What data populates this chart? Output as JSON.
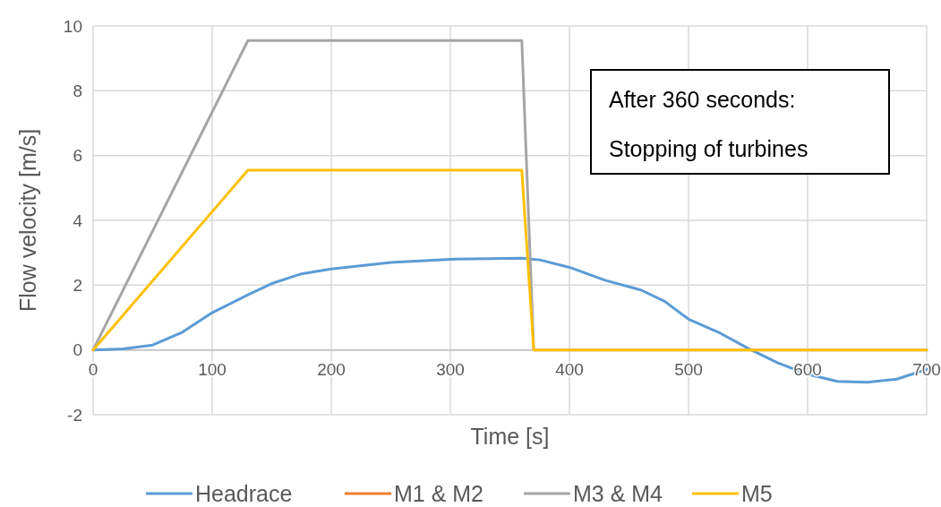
{
  "chart_data": {
    "type": "line",
    "xlabel": "Time [s]",
    "ylabel": "Flow velocity [m/s]",
    "annotations": [
      "After 360 seconds:\nStopping of turbines"
    ],
    "xlim": [
      0,
      700
    ],
    "xticks": [
      0,
      100,
      200,
      300,
      400,
      500,
      600,
      700
    ],
    "ylim": [
      -2,
      10
    ],
    "yticks": [
      -2,
      0,
      2,
      4,
      6,
      8,
      10
    ],
    "grid": true,
    "legend": "bottom",
    "line_style": "solid",
    "series": [
      {
        "name": "Headrace",
        "color": "#5b9bd5",
        "x": [
          0,
          25,
          50,
          75,
          100,
          130,
          150,
          175,
          200,
          250,
          300,
          360,
          375,
          400,
          430,
          460,
          480,
          500,
          525,
          550,
          575,
          600,
          625,
          650,
          675,
          700
        ],
        "values": [
          0,
          0.03,
          0.15,
          0.55,
          1.15,
          1.7,
          2.05,
          2.35,
          2.5,
          2.7,
          2.8,
          2.83,
          2.78,
          2.55,
          2.15,
          1.85,
          1.5,
          0.95,
          0.55,
          0.05,
          -0.4,
          -0.75,
          -0.97,
          -1.0,
          -0.9,
          -0.6
        ]
      },
      {
        "name": "M1 & M2",
        "color": "#ed7d31",
        "values": [
          null
        ]
      },
      {
        "name": "M3 & M4",
        "color": "#a5a5a5",
        "x": [
          0,
          130,
          360,
          370,
          700
        ],
        "values": [
          0,
          9.55,
          9.55,
          0,
          0
        ]
      },
      {
        "name": "M5",
        "color": "#ffc000",
        "x": [
          0,
          130,
          360,
          370,
          700
        ],
        "values": [
          0,
          5.55,
          5.55,
          0,
          0
        ]
      }
    ]
  }
}
